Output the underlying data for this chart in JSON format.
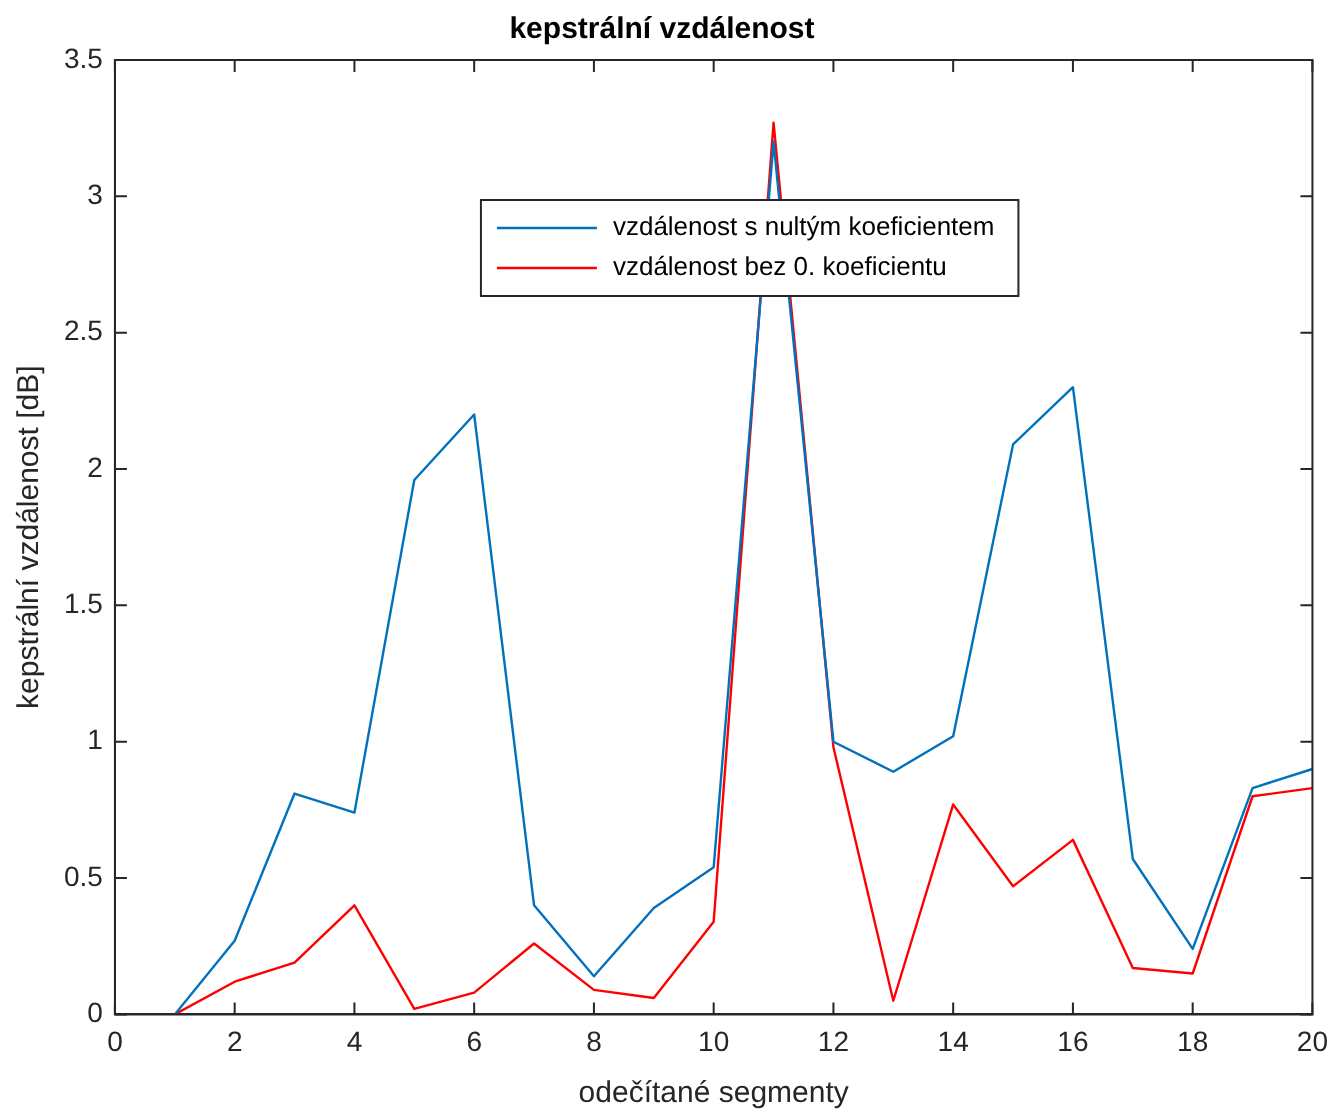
{
  "chart_data": {
    "type": "line",
    "title": "kepstrální vzdálenost",
    "xlabel": "odečítané segmenty",
    "ylabel": "kepstrální vzdálenost [dB]",
    "x": [
      1,
      2,
      3,
      4,
      5,
      6,
      7,
      8,
      9,
      10,
      11,
      12,
      13,
      14,
      15,
      16,
      17,
      18,
      19,
      20
    ],
    "series": [
      {
        "name": "vzdálenost s nultým koeficientem",
        "color": "#0072bd",
        "values": [
          0,
          0.27,
          0.81,
          0.74,
          1.96,
          2.2,
          0.4,
          0.14,
          0.39,
          0.54,
          3.2,
          1.0,
          0.89,
          1.02,
          2.09,
          2.3,
          0.57,
          0.24,
          0.83,
          0.9
        ]
      },
      {
        "name": "vzdálenost bez 0. koeficientu",
        "color": "#ff0000",
        "values": [
          0,
          0.12,
          0.19,
          0.4,
          0.02,
          0.08,
          0.26,
          0.09,
          0.06,
          0.34,
          3.27,
          0.98,
          0.05,
          0.77,
          0.47,
          0.64,
          0.17,
          0.15,
          0.8,
          0.83
        ]
      }
    ],
    "xlim": [
      0,
      20
    ],
    "xticks": [
      0,
      2,
      4,
      6,
      8,
      10,
      12,
      14,
      16,
      18,
      20
    ],
    "ylim": [
      0,
      3.5
    ],
    "yticks": [
      0,
      0.5,
      1,
      1.5,
      2,
      2.5,
      3,
      3.5
    ],
    "grid": false,
    "legend": "top",
    "marker": "none",
    "line_style": "solid"
  }
}
